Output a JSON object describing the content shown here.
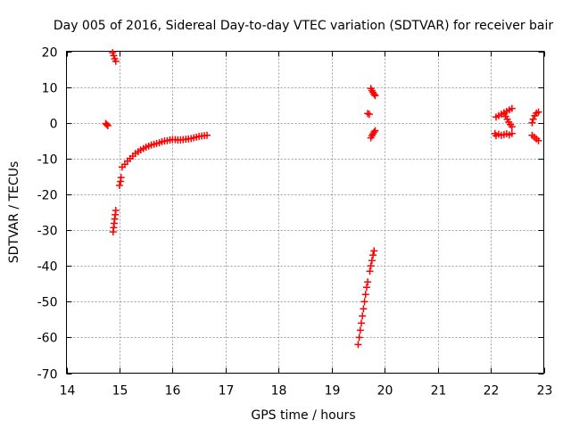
{
  "chart_data": {
    "type": "scatter",
    "title": "Day 005 of 2016, Sidereal Day-to-day VTEC variation (SDTVAR) for receiver bair",
    "xlabel": "GPS time / hours",
    "ylabel": "SDTVAR / TECUs",
    "xlim": [
      14,
      23
    ],
    "ylim": [
      -70,
      20
    ],
    "xticks": [
      14,
      15,
      16,
      17,
      18,
      19,
      20,
      21,
      22,
      23
    ],
    "yticks": [
      -70,
      -60,
      -50,
      -40,
      -30,
      -20,
      -10,
      0,
      10,
      20
    ],
    "grid": true,
    "marker": "+",
    "color": "#ff0000",
    "series": [
      {
        "name": "seg-a",
        "points": [
          [
            14.74,
            -0.2
          ],
          [
            14.76,
            -0.5
          ],
          [
            14.78,
            -0.8
          ]
        ]
      },
      {
        "name": "seg-b",
        "points": [
          [
            14.87,
            19.6
          ],
          [
            14.89,
            18.8
          ],
          [
            14.91,
            17.9
          ],
          [
            14.93,
            17.2
          ]
        ]
      },
      {
        "name": "seg-c",
        "points": [
          [
            14.88,
            -30.5
          ],
          [
            14.89,
            -29.3
          ],
          [
            14.9,
            -28.1
          ],
          [
            14.91,
            -26.9
          ],
          [
            14.92,
            -25.7
          ],
          [
            14.93,
            -24.5
          ]
        ]
      },
      {
        "name": "seg-d",
        "points": [
          [
            15.0,
            -17.5
          ],
          [
            15.02,
            -16.4
          ],
          [
            15.03,
            -15.3
          ]
        ]
      },
      {
        "name": "seg-e",
        "points": [
          [
            15.05,
            -12.4
          ],
          [
            15.1,
            -11.6
          ],
          [
            15.15,
            -10.7
          ],
          [
            15.2,
            -10.0
          ],
          [
            15.25,
            -9.3
          ],
          [
            15.3,
            -8.6
          ],
          [
            15.35,
            -8.1
          ],
          [
            15.4,
            -7.6
          ],
          [
            15.45,
            -7.2
          ],
          [
            15.5,
            -6.8
          ],
          [
            15.55,
            -6.5
          ],
          [
            15.6,
            -6.2
          ],
          [
            15.65,
            -6.0
          ],
          [
            15.7,
            -5.8
          ],
          [
            15.75,
            -5.6
          ],
          [
            15.8,
            -5.3
          ],
          [
            15.85,
            -5.1
          ],
          [
            15.9,
            -5.0
          ],
          [
            15.95,
            -4.8
          ],
          [
            16.0,
            -4.7
          ],
          [
            16.05,
            -4.7
          ],
          [
            16.1,
            -4.8
          ],
          [
            16.15,
            -4.8
          ],
          [
            16.2,
            -4.7
          ],
          [
            16.25,
            -4.6
          ],
          [
            16.3,
            -4.5
          ],
          [
            16.35,
            -4.4
          ],
          [
            16.4,
            -4.2
          ],
          [
            16.45,
            -4.0
          ],
          [
            16.5,
            -3.8
          ],
          [
            16.55,
            -3.7
          ],
          [
            16.6,
            -3.6
          ],
          [
            16.65,
            -3.5
          ]
        ]
      },
      {
        "name": "seg-f",
        "points": [
          [
            19.5,
            -62
          ],
          [
            19.52,
            -60
          ],
          [
            19.54,
            -58
          ],
          [
            19.56,
            -56
          ],
          [
            19.58,
            -54
          ],
          [
            19.6,
            -52
          ],
          [
            19.62,
            -50
          ],
          [
            19.64,
            -48
          ],
          [
            19.66,
            -46
          ],
          [
            19.68,
            -44.5
          ]
        ]
      },
      {
        "name": "seg-g",
        "points": [
          [
            19.72,
            -41.5
          ],
          [
            19.74,
            -40
          ],
          [
            19.76,
            -38.5
          ],
          [
            19.78,
            -37
          ],
          [
            19.8,
            -35.8
          ]
        ]
      },
      {
        "name": "seg-h",
        "points": [
          [
            19.68,
            2.6
          ],
          [
            19.71,
            2.4
          ]
        ]
      },
      {
        "name": "seg-i",
        "points": [
          [
            19.74,
            9.6
          ],
          [
            19.76,
            9.0
          ],
          [
            19.78,
            8.5
          ],
          [
            19.8,
            8.0
          ],
          [
            19.82,
            7.6
          ]
        ]
      },
      {
        "name": "seg-j",
        "points": [
          [
            19.74,
            -4.2
          ],
          [
            19.76,
            -3.6
          ],
          [
            19.78,
            -3.1
          ],
          [
            19.8,
            -2.6
          ],
          [
            19.82,
            -2.2
          ]
        ]
      },
      {
        "name": "seg-k",
        "points": [
          [
            22.1,
            1.6
          ],
          [
            22.15,
            2.0
          ],
          [
            22.2,
            2.4
          ],
          [
            22.25,
            2.8
          ],
          [
            22.3,
            3.2
          ],
          [
            22.35,
            3.6
          ],
          [
            22.4,
            4.0
          ]
        ]
      },
      {
        "name": "seg-l",
        "points": [
          [
            22.25,
            2.5
          ],
          [
            22.28,
            1.8
          ],
          [
            22.31,
            1.0
          ],
          [
            22.34,
            0.2
          ],
          [
            22.37,
            -0.5
          ],
          [
            22.4,
            -1.1
          ]
        ]
      },
      {
        "name": "seg-m",
        "points": [
          [
            22.08,
            -3.0
          ],
          [
            22.1,
            -3.6
          ],
          [
            22.15,
            -3.2
          ],
          [
            22.2,
            -3.5
          ],
          [
            22.25,
            -3.3
          ],
          [
            22.3,
            -3.1
          ],
          [
            22.35,
            -3.4
          ],
          [
            22.4,
            -3.0
          ]
        ]
      },
      {
        "name": "seg-n",
        "points": [
          [
            22.78,
            0.0
          ],
          [
            22.8,
            1.0
          ],
          [
            22.83,
            2.0
          ],
          [
            22.86,
            2.7
          ],
          [
            22.9,
            3.0
          ]
        ]
      },
      {
        "name": "seg-o",
        "points": [
          [
            22.78,
            -3.5
          ],
          [
            22.82,
            -4.0
          ],
          [
            22.86,
            -4.5
          ],
          [
            22.9,
            -5.0
          ]
        ]
      }
    ]
  }
}
